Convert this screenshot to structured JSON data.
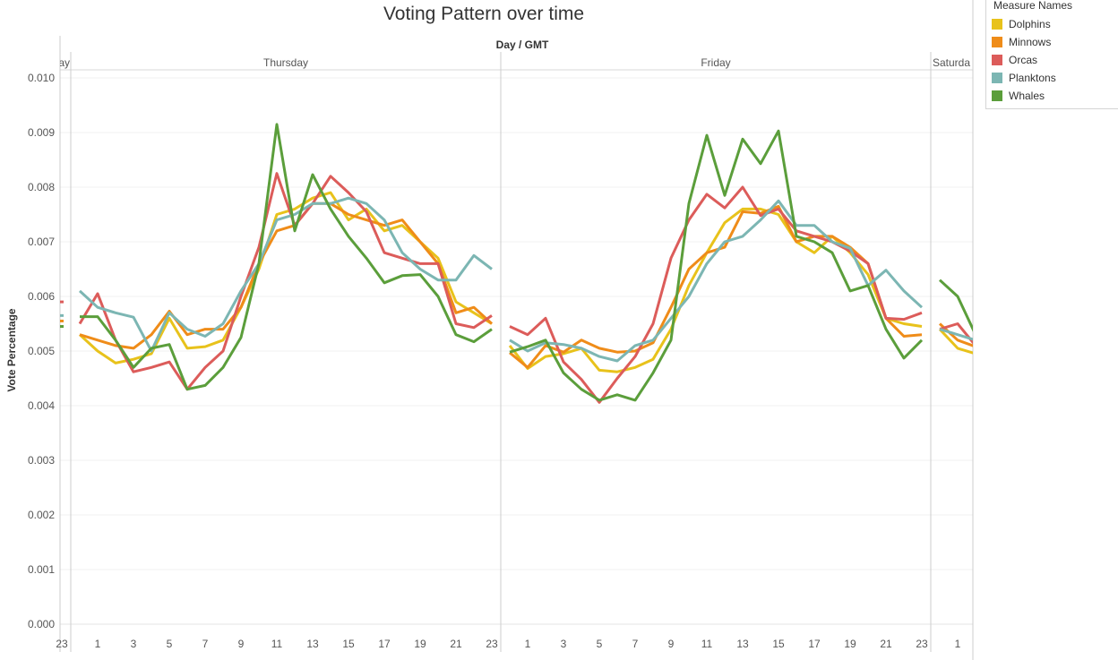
{
  "chart_data": {
    "type": "line",
    "title": "Voting Pattern over time",
    "xlabel": "Day / GMT",
    "ylabel": "Vote Percentage",
    "ylim": [
      0,
      0.01
    ],
    "yticks": [
      "0.000",
      "0.001",
      "0.002",
      "0.003",
      "0.004",
      "0.005",
      "0.006",
      "0.007",
      "0.008",
      "0.009",
      "0.010"
    ],
    "panes": [
      {
        "label": "ay",
        "hour_start": 23,
        "hour_end": 23,
        "xtick_labels": [
          "23"
        ]
      },
      {
        "label": "Thursday",
        "hour_start": 0,
        "hour_end": 23,
        "xtick_labels": [
          "1",
          "3",
          "5",
          "7",
          "9",
          "11",
          "13",
          "15",
          "17",
          "19",
          "21",
          "23"
        ]
      },
      {
        "label": "Friday",
        "hour_start": 0,
        "hour_end": 23,
        "xtick_labels": [
          "1",
          "3",
          "5",
          "7",
          "9",
          "11",
          "13",
          "15",
          "17",
          "19",
          "21",
          "23"
        ]
      },
      {
        "label": "Saturda",
        "hour_start": 0,
        "hour_end": 1,
        "xtick_labels": [
          "1"
        ]
      }
    ],
    "legend": {
      "title": "Measure Names",
      "position": "top-right"
    },
    "series": [
      {
        "name": "Dolphins",
        "color": "#e8c21b",
        "values": [
          0.00545,
          0.0053,
          0.005,
          0.00478,
          0.00485,
          0.00495,
          0.0056,
          0.00505,
          0.00508,
          0.0052,
          0.0058,
          0.0065,
          0.0075,
          0.0076,
          0.0078,
          0.0079,
          0.0074,
          0.0076,
          0.0072,
          0.0073,
          0.007,
          0.0067,
          0.0059,
          0.0057,
          0.0055,
          0.0051,
          0.00468,
          0.0049,
          0.00495,
          0.00505,
          0.00465,
          0.00462,
          0.0047,
          0.00485,
          0.0054,
          0.0062,
          0.0068,
          0.00735,
          0.0076,
          0.0076,
          0.0075,
          0.007,
          0.0068,
          0.0071,
          0.0068,
          0.0064,
          0.0056,
          0.0055,
          0.00545,
          0.0054,
          0.00505,
          0.00495
        ]
      },
      {
        "name": "Minnows",
        "color": "#ef8c19",
        "values": [
          0.00555,
          0.0053,
          0.0052,
          0.0051,
          0.00505,
          0.0053,
          0.00573,
          0.0053,
          0.0054,
          0.0054,
          0.0058,
          0.0066,
          0.0072,
          0.0073,
          0.0077,
          0.0077,
          0.0075,
          0.0074,
          0.0073,
          0.0074,
          0.007,
          0.0066,
          0.0057,
          0.0058,
          0.0055,
          0.00497,
          0.0047,
          0.0051,
          0.00498,
          0.0052,
          0.00505,
          0.00498,
          0.005,
          0.00515,
          0.0058,
          0.0065,
          0.0068,
          0.0069,
          0.00755,
          0.00752,
          0.00765,
          0.007,
          0.0071,
          0.0071,
          0.0069,
          0.0066,
          0.0056,
          0.00527,
          0.0053,
          0.0055,
          0.0052,
          0.00508
        ]
      },
      {
        "name": "Orcas",
        "color": "#dc5c5a",
        "values": [
          0.0059,
          0.0055,
          0.00605,
          0.0052,
          0.00462,
          0.0047,
          0.0048,
          0.0043,
          0.0047,
          0.005,
          0.006,
          0.0069,
          0.00825,
          0.0073,
          0.0077,
          0.0082,
          0.0079,
          0.00755,
          0.0068,
          0.0067,
          0.0066,
          0.0066,
          0.0055,
          0.00543,
          0.00565,
          0.00545,
          0.0053,
          0.0056,
          0.0048,
          0.00448,
          0.00406,
          0.0045,
          0.0049,
          0.0055,
          0.0067,
          0.0074,
          0.00787,
          0.00762,
          0.008,
          0.00748,
          0.0076,
          0.0072,
          0.0071,
          0.007,
          0.00683,
          0.0066,
          0.0056,
          0.00558,
          0.0057,
          0.0054,
          0.0055,
          0.0051
        ]
      },
      {
        "name": "Planktons",
        "color": "#7cb6b3",
        "values": [
          0.00565,
          0.0061,
          0.0058,
          0.0057,
          0.00562,
          0.005,
          0.0057,
          0.0054,
          0.00527,
          0.0055,
          0.0061,
          0.0066,
          0.0074,
          0.0075,
          0.0077,
          0.0077,
          0.0078,
          0.0077,
          0.0074,
          0.0068,
          0.0065,
          0.0063,
          0.0063,
          0.00675,
          0.0065,
          0.0052,
          0.005,
          0.00515,
          0.00512,
          0.00505,
          0.0049,
          0.00482,
          0.0051,
          0.0052,
          0.0056,
          0.006,
          0.0066,
          0.007,
          0.0071,
          0.0074,
          0.00775,
          0.0073,
          0.0073,
          0.007,
          0.00688,
          0.0062,
          0.00648,
          0.0061,
          0.0058,
          0.0054,
          0.0053,
          0.0052
        ]
      },
      {
        "name": "Whales",
        "color": "#5b9e3b",
        "values": [
          0.00545,
          0.00563,
          0.00563,
          0.0052,
          0.0047,
          0.00505,
          0.00512,
          0.0043,
          0.00437,
          0.0047,
          0.00525,
          0.0066,
          0.00915,
          0.0072,
          0.00823,
          0.0076,
          0.0071,
          0.0067,
          0.00625,
          0.00638,
          0.0064,
          0.006,
          0.0053,
          0.00517,
          0.0054,
          0.00498,
          0.00508,
          0.0052,
          0.0046,
          0.0043,
          0.0041,
          0.0042,
          0.0041,
          0.0046,
          0.0052,
          0.0077,
          0.00895,
          0.00785,
          0.00888,
          0.00843,
          0.00903,
          0.0071,
          0.007,
          0.0068,
          0.0061,
          0.0062,
          0.0054,
          0.00487,
          0.0052,
          0.0063,
          0.006,
          0.0053
        ]
      }
    ]
  }
}
